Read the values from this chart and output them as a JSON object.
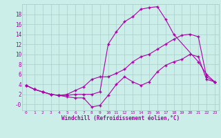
{
  "xlabel": "Windchill (Refroidissement éolien,°C)",
  "background_color": "#cceee8",
  "grid_color": "#aacccc",
  "line_color": "#aa00aa",
  "xlim": [
    -0.5,
    23.5
  ],
  "ylim": [
    -1.2,
    20
  ],
  "xticks": [
    0,
    1,
    2,
    3,
    4,
    5,
    6,
    7,
    8,
    9,
    10,
    11,
    12,
    13,
    14,
    15,
    16,
    17,
    18,
    19,
    20,
    21,
    22,
    23
  ],
  "yticks": [
    0,
    2,
    4,
    6,
    8,
    10,
    12,
    14,
    16,
    18
  ],
  "ytick_labels": [
    "-0",
    "2",
    "4",
    "6",
    "8",
    "10",
    "12",
    "14",
    "16",
    "18"
  ],
  "line3_x": [
    0,
    1,
    2,
    3,
    4,
    5,
    6,
    7,
    8,
    9,
    10,
    11,
    12,
    13,
    14,
    15,
    16,
    17,
    18,
    21,
    22,
    23
  ],
  "line3_y": [
    3.8,
    3.0,
    2.5,
    2.0,
    1.8,
    1.8,
    2.0,
    2.0,
    2.0,
    2.5,
    12.0,
    14.5,
    16.5,
    17.5,
    19.0,
    19.3,
    19.5,
    17.0,
    14.0,
    8.5,
    6.0,
    4.5
  ],
  "line2_x": [
    0,
    1,
    2,
    3,
    4,
    5,
    6,
    7,
    8,
    9,
    10,
    11,
    12,
    13,
    14,
    15,
    16,
    17,
    18,
    19,
    20,
    21,
    22,
    23
  ],
  "line2_y": [
    3.8,
    3.0,
    2.5,
    2.0,
    1.8,
    2.0,
    2.8,
    3.5,
    5.0,
    5.5,
    5.5,
    6.2,
    7.0,
    8.5,
    9.5,
    10.0,
    11.0,
    12.0,
    13.0,
    13.8,
    14.0,
    13.5,
    5.5,
    4.5
  ],
  "line1_x": [
    0,
    1,
    2,
    3,
    4,
    5,
    6,
    7,
    8,
    9,
    10,
    11,
    12,
    13,
    14,
    15,
    16,
    17,
    18,
    19,
    20,
    21,
    22,
    23
  ],
  "line1_y": [
    3.8,
    3.0,
    2.5,
    2.0,
    1.8,
    1.5,
    1.3,
    1.3,
    -0.5,
    -0.2,
    1.8,
    4.0,
    5.5,
    4.5,
    3.8,
    4.5,
    6.5,
    7.8,
    8.5,
    9.0,
    10.0,
    9.5,
    5.0,
    4.5
  ]
}
